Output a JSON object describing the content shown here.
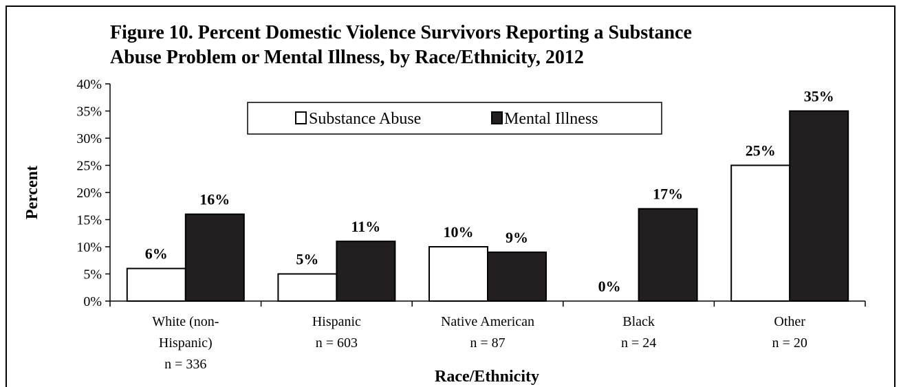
{
  "chart_data": {
    "type": "bar",
    "title_lines": [
      "Figure 10.  Percent Domestic Violence Survivors Reporting a Substance",
      "Abuse Problem or Mental Illness, by Race/Ethnicity, 2012"
    ],
    "xlabel": "Race/Ethnicity",
    "ylabel": "Percent",
    "ylim": [
      0,
      40
    ],
    "yticks": [
      0,
      5,
      10,
      15,
      20,
      25,
      30,
      35,
      40
    ],
    "ytick_labels": [
      "0%",
      "5%",
      "10%",
      "15%",
      "20%",
      "25%",
      "30%",
      "35%",
      "40%"
    ],
    "categories": [
      {
        "lines": [
          "White (non-",
          "Hispanic)",
          "n = 336"
        ]
      },
      {
        "lines": [
          "Hispanic",
          "n = 603"
        ]
      },
      {
        "lines": [
          "Native American",
          "n = 87"
        ]
      },
      {
        "lines": [
          "Black",
          "n = 24"
        ]
      },
      {
        "lines": [
          "Other",
          "n = 20"
        ]
      }
    ],
    "series": [
      {
        "name": "Substance Abuse",
        "fill": "#ffffff",
        "values": [
          6,
          5,
          10,
          0,
          25
        ],
        "labels": [
          "6%",
          "5%",
          "10%",
          "0%",
          "25%"
        ]
      },
      {
        "name": "Mental Illness",
        "fill": "#231f20",
        "values": [
          16,
          11,
          9,
          17,
          35
        ],
        "labels": [
          "16%",
          "11%",
          "9%",
          "17%",
          "35%"
        ]
      }
    ],
    "legend_position": "top-center",
    "grid": false
  }
}
